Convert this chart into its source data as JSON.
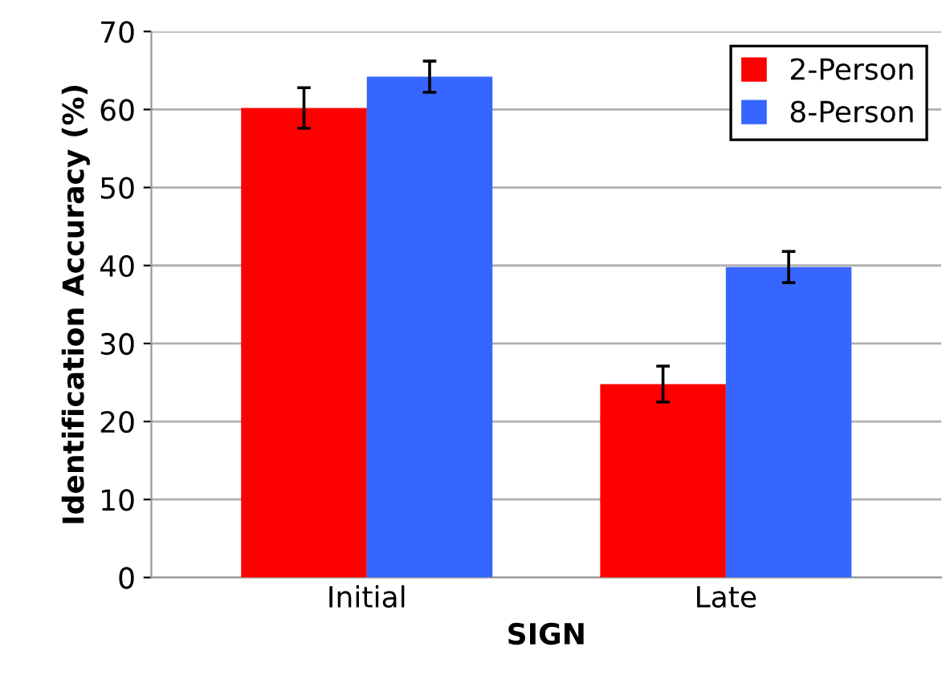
{
  "chart_data": {
    "type": "bar",
    "xlabel": "SIGN",
    "ylabel": "Identification Accuracy (%)",
    "categories": [
      "Initial",
      "Late"
    ],
    "series": [
      {
        "name": "2-Person",
        "color": "#ff0000",
        "values": [
          60.2,
          24.8
        ],
        "errors": [
          2.6,
          2.3
        ]
      },
      {
        "name": "8-Person",
        "color": "#3666ff",
        "values": [
          64.2,
          39.8
        ],
        "errors": [
          2.0,
          2.0
        ]
      }
    ],
    "ylim": [
      0,
      70
    ],
    "yticks": [
      0,
      10,
      20,
      30,
      40,
      50,
      60,
      70
    ],
    "grid": "y",
    "legend": "top right"
  }
}
